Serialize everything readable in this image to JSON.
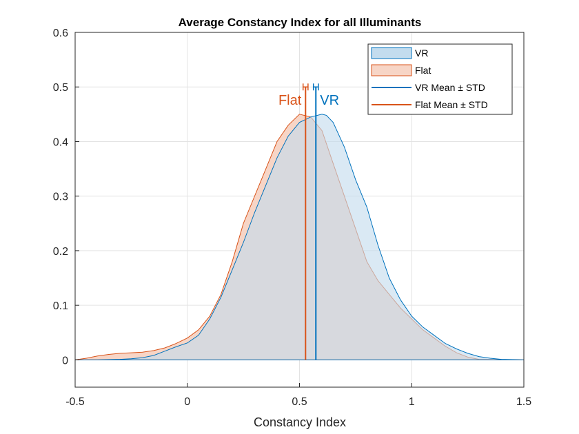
{
  "chart_data": {
    "type": "area",
    "title": "Average Constancy Index for all Illuminants",
    "xlabel": "Constancy Index",
    "ylabel": "",
    "xlim": [
      -0.5,
      1.5
    ],
    "ylim": [
      -0.05,
      0.6
    ],
    "xticks": [
      -0.5,
      0,
      0.5,
      1,
      1.5
    ],
    "xtick_labels": [
      "-0.5",
      "0",
      "0.5",
      "1",
      "1.5"
    ],
    "yticks": [
      0,
      0.1,
      0.2,
      0.3,
      0.4,
      0.5,
      0.6
    ],
    "ytick_labels": [
      "0",
      "0.1",
      "0.2",
      "0.3",
      "0.4",
      "0.5",
      "0.6"
    ],
    "grid": true,
    "legend_position": "top-right",
    "colors": {
      "vr": "#0072BD",
      "flat": "#D95319",
      "vr_fill": "#C3DCEE",
      "flat_fill": "#F7D5C6"
    },
    "series": [
      {
        "name": "VR",
        "type": "density",
        "x": [
          -0.5,
          -0.4,
          -0.3,
          -0.25,
          -0.2,
          -0.15,
          -0.1,
          -0.05,
          0.0,
          0.05,
          0.1,
          0.15,
          0.2,
          0.25,
          0.3,
          0.35,
          0.4,
          0.45,
          0.5,
          0.55,
          0.6,
          0.62,
          0.65,
          0.7,
          0.75,
          0.8,
          0.85,
          0.9,
          0.95,
          1.0,
          1.05,
          1.1,
          1.15,
          1.2,
          1.25,
          1.3,
          1.35,
          1.4,
          1.5
        ],
        "y": [
          0.0,
          0.0,
          0.001,
          0.002,
          0.004,
          0.008,
          0.016,
          0.024,
          0.031,
          0.045,
          0.075,
          0.115,
          0.165,
          0.215,
          0.27,
          0.32,
          0.37,
          0.41,
          0.435,
          0.445,
          0.45,
          0.448,
          0.435,
          0.39,
          0.33,
          0.28,
          0.21,
          0.15,
          0.11,
          0.08,
          0.06,
          0.045,
          0.03,
          0.02,
          0.012,
          0.006,
          0.003,
          0.001,
          0.0
        ]
      },
      {
        "name": "Flat",
        "type": "density",
        "x": [
          -0.5,
          -0.45,
          -0.4,
          -0.35,
          -0.3,
          -0.25,
          -0.2,
          -0.15,
          -0.1,
          -0.05,
          0.0,
          0.05,
          0.1,
          0.15,
          0.2,
          0.25,
          0.3,
          0.35,
          0.4,
          0.45,
          0.5,
          0.55,
          0.6,
          0.65,
          0.7,
          0.75,
          0.8,
          0.85,
          0.9,
          0.95,
          1.0,
          1.05,
          1.1,
          1.15,
          1.2,
          1.25,
          1.3,
          1.5
        ],
        "y": [
          0.0,
          0.003,
          0.007,
          0.01,
          0.012,
          0.013,
          0.014,
          0.017,
          0.022,
          0.03,
          0.04,
          0.055,
          0.08,
          0.12,
          0.18,
          0.25,
          0.3,
          0.35,
          0.4,
          0.43,
          0.45,
          0.445,
          0.42,
          0.36,
          0.3,
          0.24,
          0.18,
          0.145,
          0.12,
          0.095,
          0.075,
          0.055,
          0.04,
          0.025,
          0.013,
          0.005,
          0.001,
          0.0
        ]
      },
      {
        "name": "VR Mean ± STD",
        "mean": 0.573,
        "std_bar": [
          0.562,
          0.584
        ],
        "bar_y": 0.5
      },
      {
        "name": "Flat Mean ± STD",
        "mean": 0.527,
        "std_bar": [
          0.516,
          0.538
        ],
        "bar_y": 0.5
      }
    ],
    "annotations": [
      {
        "text": "Flat",
        "series": "Flat"
      },
      {
        "text": "VR",
        "series": "VR"
      }
    ]
  }
}
